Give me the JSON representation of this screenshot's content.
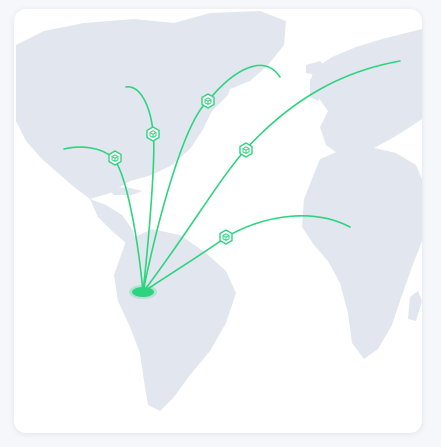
{
  "colors": {
    "land": "#e1e6ef",
    "route": "#2dd47f",
    "hub": "#2dd47f",
    "card": "#ffffff",
    "page": "#f5f7fa"
  },
  "hub": {
    "name": "south-america-hub"
  },
  "routes": [
    {
      "name": "route-caribbean",
      "icon": "package-icon"
    },
    {
      "name": "route-eastern-canada",
      "icon": "package-icon"
    },
    {
      "name": "route-greenland",
      "icon": "package-icon"
    },
    {
      "name": "route-northern-europe",
      "icon": "package-icon"
    },
    {
      "name": "route-west-africa",
      "icon": "package-icon"
    }
  ]
}
